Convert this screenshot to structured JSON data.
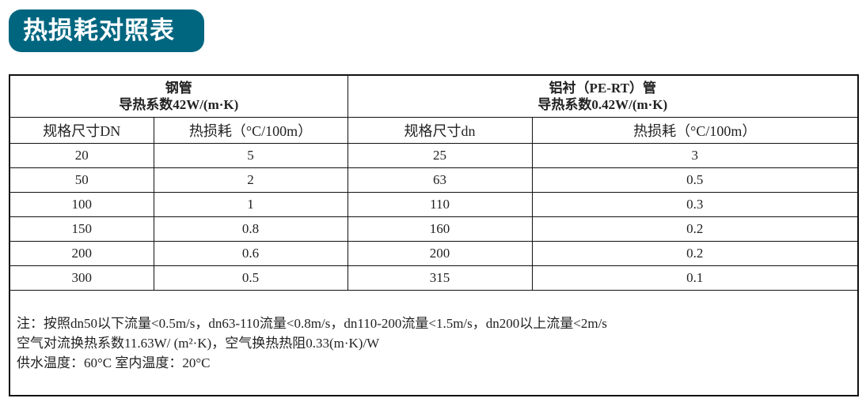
{
  "title": "热损耗对照表",
  "steel": {
    "name": "钢管",
    "conductivity": "导热系数42W/(m·K)",
    "col_size": "规格尺寸DN",
    "col_loss": "热损耗（°C/100m）"
  },
  "pert": {
    "name": "铝衬（PE-RT）管",
    "conductivity": "导热系数0.42W/(m·K)",
    "col_size": "规格尺寸dn",
    "col_loss": "热损耗（°C/100m）"
  },
  "rows": [
    {
      "dn": "20",
      "steel_loss": "5",
      "dn2": "25",
      "pert_loss": "3"
    },
    {
      "dn": "50",
      "steel_loss": "2",
      "dn2": "63",
      "pert_loss": "0.5"
    },
    {
      "dn": "100",
      "steel_loss": "1",
      "dn2": "110",
      "pert_loss": "0.3"
    },
    {
      "dn": "150",
      "steel_loss": "0.8",
      "dn2": "160",
      "pert_loss": "0.2"
    },
    {
      "dn": "200",
      "steel_loss": "0.6",
      "dn2": "200",
      "pert_loss": "0.2"
    },
    {
      "dn": "300",
      "steel_loss": "0.5",
      "dn2": "315",
      "pert_loss": "0.1"
    }
  ],
  "notes": [
    "注：按照dn50以下流量<0.5m/s，dn63-110流量<0.8m/s，dn110-200流量<1.5m/s，dn200以上流量<2m/s",
    "空气对流换热系数11.63W/ (m²·K)，空气换热热阻0.33(m·K)/W",
    "供水温度：60°C   室内温度：20°C"
  ],
  "colors": {
    "badge": "#006680"
  }
}
